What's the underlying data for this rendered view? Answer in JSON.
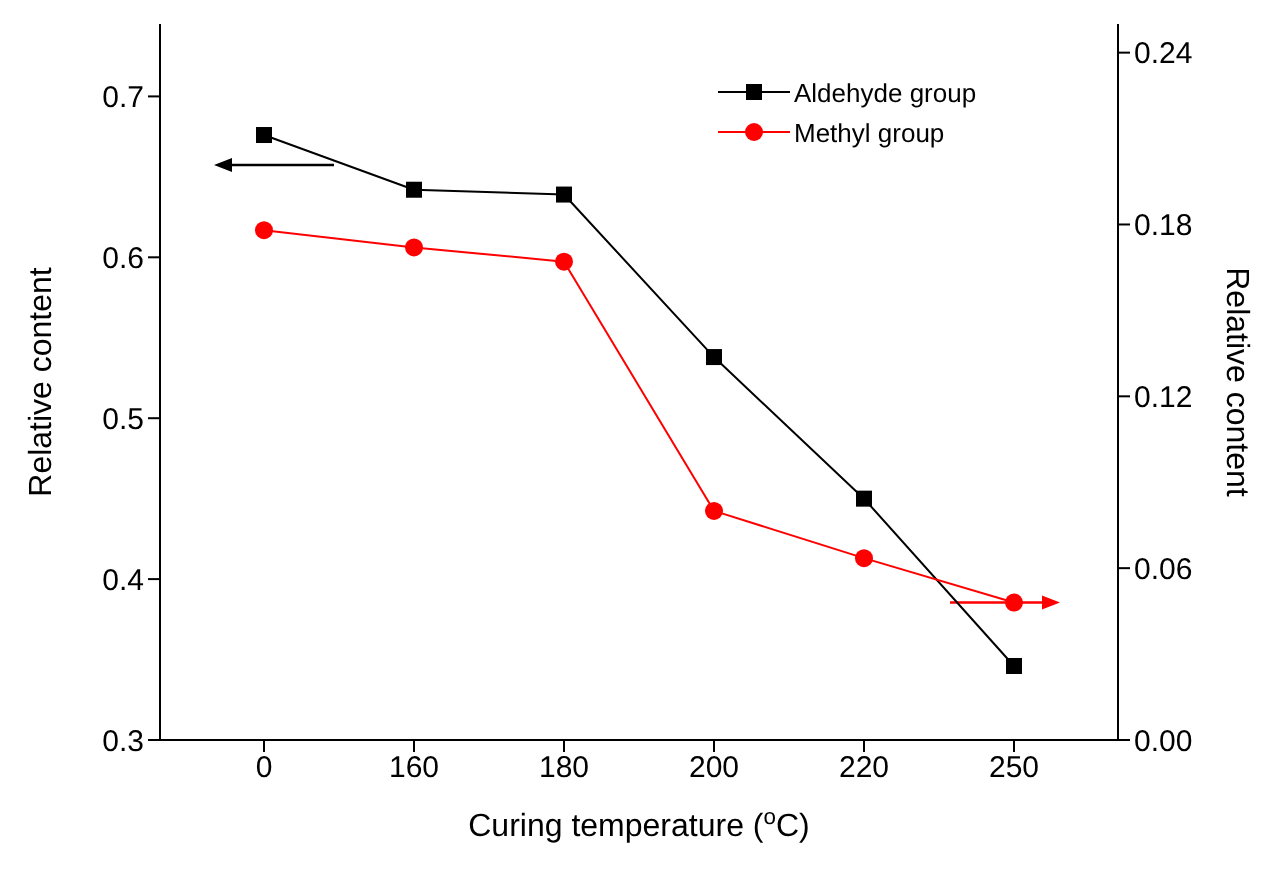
{
  "chart_data": {
    "type": "line",
    "xlabel": "Curing temperature ($^{o}$C)",
    "ylabel": "Relative content",
    "y2label": "Relative content",
    "categories": [
      "0",
      "160",
      "180",
      "200",
      "220",
      "250"
    ],
    "series": [
      {
        "name": "Aldehyde group",
        "color": "#000000",
        "marker": "square",
        "values": [
          0.676,
          0.642,
          0.639,
          0.538,
          0.45,
          0.346
        ]
      },
      {
        "name": "Methyl group",
        "color": "#ff0000",
        "marker": "circle",
        "axis": "y2",
        "values": [
          0.178,
          0.172,
          0.167,
          0.08,
          0.0635,
          0.048
        ]
      }
    ],
    "ylim": [
      0.3,
      0.745
    ],
    "yticks": [
      0.3,
      0.4,
      0.5,
      0.6,
      0.7
    ],
    "y2lim": [
      0,
      0.25
    ],
    "y2ticks": [
      {
        "value": 0,
        "label": "0.00"
      },
      {
        "value": 0.06,
        "label": "0.06"
      },
      {
        "value": 0.12,
        "label": "0.12"
      },
      {
        "value": 0.18,
        "label": "0.18"
      },
      {
        "value": 0.24,
        "label": "0.24"
      }
    ],
    "legend": "top right",
    "grid": false
  }
}
